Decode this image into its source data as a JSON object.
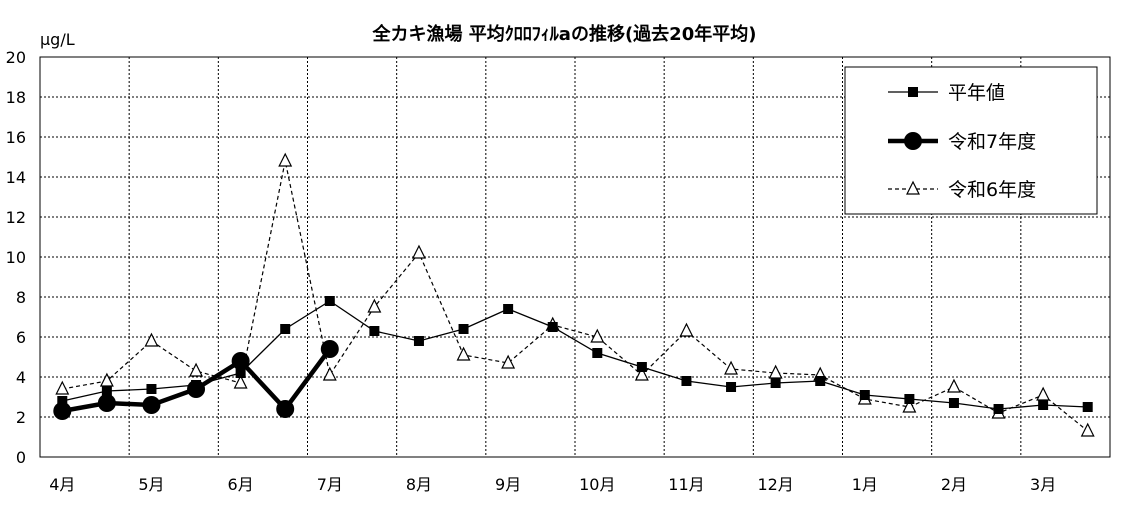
{
  "chart_data": {
    "type": "line",
    "title": "全カキ漁場 平均ｸﾛﾛﾌｨﾙaの推移(過去20年平均)",
    "ylabel": "μg/L",
    "xlabel": "",
    "ylim": [
      0,
      20
    ],
    "yticks": [
      0,
      2,
      4,
      6,
      8,
      10,
      12,
      14,
      16,
      18,
      20
    ],
    "categories": [
      "4月",
      "5月",
      "6月",
      "7月",
      "8月",
      "9月",
      "10月",
      "11月",
      "12月",
      "1月",
      "2月",
      "3月"
    ],
    "grid": true,
    "legend_position": "top-right",
    "series": [
      {
        "name": "平年値",
        "style": "solid-square",
        "color": "#000000",
        "x": [
          0,
          0.5,
          1,
          1.5,
          2,
          2.5,
          3,
          3.5,
          4,
          4.5,
          5,
          5.5,
          6,
          6.5,
          7,
          7.5,
          8,
          8.5,
          9,
          9.5,
          10,
          10.5,
          11,
          11.5
        ],
        "values": [
          2.8,
          3.3,
          3.4,
          3.6,
          4.2,
          6.4,
          7.8,
          6.3,
          5.8,
          6.4,
          7.4,
          6.5,
          5.2,
          4.5,
          3.8,
          3.5,
          3.7,
          3.8,
          3.1,
          2.9,
          2.7,
          2.4,
          2.6,
          2.5
        ]
      },
      {
        "name": "令和7年度",
        "style": "bold-circle",
        "color": "#000000",
        "x": [
          0,
          0.5,
          1,
          1.5,
          2,
          2.5,
          3
        ],
        "values": [
          2.3,
          2.7,
          2.6,
          3.4,
          4.8,
          2.4,
          5.4
        ]
      },
      {
        "name": "令和6年度",
        "style": "dashed-triangle",
        "color": "#000000",
        "x": [
          0,
          0.5,
          1,
          1.5,
          2,
          2.5,
          3,
          3.5,
          4,
          4.5,
          5,
          5.5,
          6,
          6.5,
          7,
          7.5,
          8,
          8.5,
          9,
          9.5,
          10,
          10.5,
          11,
          11.5
        ],
        "values": [
          3.4,
          3.8,
          5.8,
          4.3,
          3.7,
          14.8,
          4.1,
          7.5,
          10.2,
          5.1,
          4.7,
          6.6,
          6.0,
          4.1,
          6.3,
          4.4,
          4.2,
          4.1,
          2.9,
          2.5,
          3.5,
          2.2,
          3.1,
          1.3
        ]
      }
    ]
  }
}
